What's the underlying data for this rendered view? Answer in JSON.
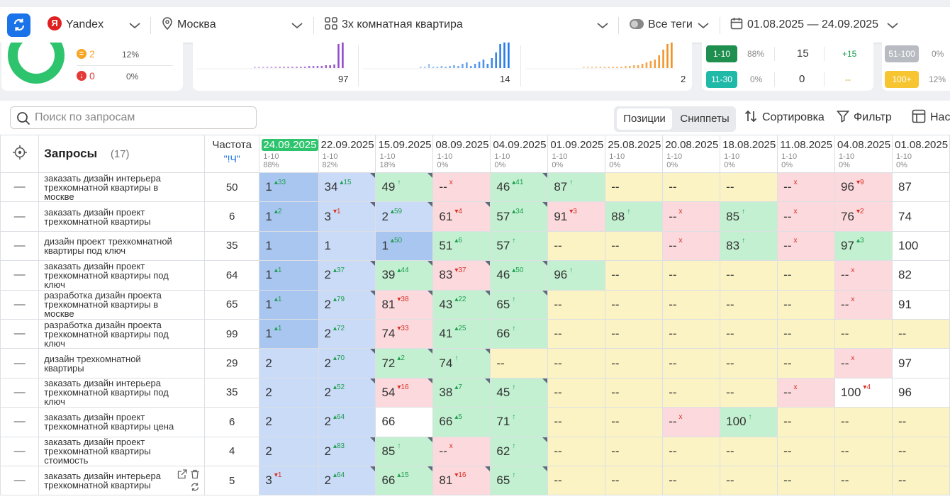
{
  "toolbar": {
    "engine": "Yandex",
    "engine_logo": "Я",
    "region": "Москва",
    "project": "3х комнатная квартира",
    "tags": "Все теги",
    "date_range": "01.08.2025 — 24.09.2025"
  },
  "summary": {
    "legend": [
      {
        "icon": "equal-icon",
        "count": "2",
        "pct": "12%",
        "color": "#f5a623"
      },
      {
        "icon": "arrow-down-icon",
        "count": "0",
        "pct": "0%",
        "color": "#e53935"
      }
    ],
    "mini_charts": [
      {
        "value": "97",
        "color": "#8e44c9"
      },
      {
        "value": "14",
        "color": "#1a73e8"
      },
      {
        "value": "2",
        "color": "#f08c1a"
      }
    ],
    "ranges": [
      {
        "label": "1-10",
        "pct": "88%",
        "count": "15",
        "delta": "+15",
        "color": "#1e8f4f"
      },
      {
        "label": "11-30",
        "pct": "0%",
        "count": "0",
        "delta": "--",
        "color": "#1fb9a8"
      },
      {
        "label": "51-100",
        "pct": "0%",
        "color": "#b8bcc2"
      },
      {
        "label": "100+",
        "pct": "12%",
        "color": "#f7c531"
      }
    ]
  },
  "search": {
    "placeholder": "Поиск по запросам"
  },
  "tabs": {
    "positions": "Позиции",
    "snippets": "Сниппеты"
  },
  "tools": {
    "sort": "Сортировка",
    "filter": "Фильтр",
    "columns": "Нас"
  },
  "table": {
    "queries_label": "Запросы",
    "queries_count": "(17)",
    "freq_label": "Частота",
    "freq_sub": "\"!Ч\"",
    "dates": [
      {
        "date": "24.09.2025",
        "range": "1-10",
        "pct": "88%"
      },
      {
        "date": "22.09.2025",
        "range": "1-10",
        "pct": "82%"
      },
      {
        "date": "15.09.2025",
        "range": "1-10",
        "pct": "18%"
      },
      {
        "date": "08.09.2025",
        "range": "1-10",
        "pct": "0%"
      },
      {
        "date": "04.09.2025",
        "range": "1-10",
        "pct": "0%"
      },
      {
        "date": "01.09.2025",
        "range": "1-10",
        "pct": "0%"
      },
      {
        "date": "25.08.2025",
        "range": "1-10",
        "pct": "0%"
      },
      {
        "date": "20.08.2025",
        "range": "1-10",
        "pct": "0%"
      },
      {
        "date": "18.08.2025",
        "range": "1-10",
        "pct": "0%"
      },
      {
        "date": "11.08.2025",
        "range": "1-10",
        "pct": "0%"
      },
      {
        "date": "04.08.2025",
        "range": "1-10",
        "pct": "0%"
      },
      {
        "date": "01.08.2025",
        "range": "1-10",
        "pct": "0%"
      }
    ],
    "rows": [
      {
        "query": "заказать дизайн интерьера трехкомнатной квартиры в москве",
        "freq": "50",
        "cells": [
          [
            "1",
            "+33"
          ],
          [
            "34",
            "+15"
          ],
          [
            "49",
            "↑"
          ],
          [
            "--",
            "×"
          ],
          [
            "46",
            "+41"
          ],
          [
            "87",
            "↑"
          ],
          [
            "--",
            ""
          ],
          [
            "--",
            ""
          ],
          [
            "--",
            ""
          ],
          [
            "--",
            "×"
          ],
          [
            "96",
            "-9"
          ],
          [
            "87",
            ""
          ]
        ]
      },
      {
        "query": "заказать дизайн проект трехкомнатной квартиры",
        "freq": "6",
        "cells": [
          [
            "1",
            "+2"
          ],
          [
            "3",
            "-1"
          ],
          [
            "2",
            "+59"
          ],
          [
            "61",
            "-4"
          ],
          [
            "57",
            "+34"
          ],
          [
            "91",
            "-3"
          ],
          [
            "88",
            "↑"
          ],
          [
            "--",
            "×"
          ],
          [
            "85",
            "↑"
          ],
          [
            "--",
            "×"
          ],
          [
            "76",
            "-2"
          ],
          [
            "74",
            ""
          ]
        ]
      },
      {
        "query": "дизайн проект трехкомнатной квартиры под ключ",
        "freq": "35",
        "cells": [
          [
            "1",
            ""
          ],
          [
            "1",
            ""
          ],
          [
            "1",
            "+50"
          ],
          [
            "51",
            "+6"
          ],
          [
            "57",
            "↑"
          ],
          [
            "--",
            ""
          ],
          [
            "--",
            ""
          ],
          [
            "--",
            "×"
          ],
          [
            "83",
            "↑"
          ],
          [
            "--",
            "×"
          ],
          [
            "97",
            "+3"
          ],
          [
            "100",
            ""
          ]
        ]
      },
      {
        "query": "заказать дизайн проект трехкомнатной квартиры под ключ",
        "freq": "64",
        "cells": [
          [
            "1",
            "+1"
          ],
          [
            "2",
            "+37"
          ],
          [
            "39",
            "+44"
          ],
          [
            "83",
            "-37"
          ],
          [
            "46",
            "+50"
          ],
          [
            "96",
            "↑"
          ],
          [
            "--",
            ""
          ],
          [
            "--",
            ""
          ],
          [
            "--",
            ""
          ],
          [
            "--",
            ""
          ],
          [
            "--",
            "×"
          ],
          [
            "82",
            ""
          ]
        ]
      },
      {
        "query": "разработка дизайн проекта трехкомнатной квартиры в москве",
        "freq": "65",
        "cells": [
          [
            "1",
            "+1"
          ],
          [
            "2",
            "+79"
          ],
          [
            "81",
            "-38"
          ],
          [
            "43",
            "+22"
          ],
          [
            "65",
            "↑"
          ],
          [
            "--",
            ""
          ],
          [
            "--",
            ""
          ],
          [
            "--",
            ""
          ],
          [
            "--",
            ""
          ],
          [
            "--",
            ""
          ],
          [
            "--",
            "×"
          ],
          [
            "91",
            ""
          ]
        ]
      },
      {
        "query": "разработка дизайн проекта трехкомнатной квартиры под ключ",
        "freq": "99",
        "cells": [
          [
            "1",
            "+1"
          ],
          [
            "2",
            "+72"
          ],
          [
            "74",
            "-33"
          ],
          [
            "41",
            "+25"
          ],
          [
            "66",
            "↑"
          ],
          [
            "--",
            ""
          ],
          [
            "--",
            ""
          ],
          [
            "--",
            ""
          ],
          [
            "--",
            ""
          ],
          [
            "--",
            ""
          ],
          [
            "--",
            ""
          ],
          [
            "--",
            ""
          ]
        ]
      },
      {
        "query": "дизайн трехкомнатной квартиры",
        "freq": "29",
        "cells": [
          [
            "2",
            ""
          ],
          [
            "2",
            "+70"
          ],
          [
            "72",
            "+2"
          ],
          [
            "74",
            "↑"
          ],
          [
            "--",
            ""
          ],
          [
            "--",
            ""
          ],
          [
            "--",
            ""
          ],
          [
            "--",
            ""
          ],
          [
            "--",
            ""
          ],
          [
            "--",
            ""
          ],
          [
            "--",
            "×"
          ],
          [
            "97",
            ""
          ]
        ]
      },
      {
        "query": "заказать дизайн интерьера трехкомнатной квартиры под ключ",
        "freq": "35",
        "cells": [
          [
            "2",
            ""
          ],
          [
            "2",
            "+52"
          ],
          [
            "54",
            "-16"
          ],
          [
            "38",
            "+7"
          ],
          [
            "45",
            "↑"
          ],
          [
            "--",
            ""
          ],
          [
            "--",
            ""
          ],
          [
            "--",
            ""
          ],
          [
            "--",
            ""
          ],
          [
            "--",
            "×"
          ],
          [
            "100",
            "-4"
          ],
          [
            "96",
            ""
          ]
        ]
      },
      {
        "query": "заказать дизайн проект трехкомнатной квартиры цена",
        "freq": "6",
        "cells": [
          [
            "2",
            ""
          ],
          [
            "2",
            "+64"
          ],
          [
            "66",
            ""
          ],
          [
            "66",
            "+5"
          ],
          [
            "71",
            "↑"
          ],
          [
            "--",
            ""
          ],
          [
            "--",
            ""
          ],
          [
            "--",
            "×"
          ],
          [
            "100",
            "↑"
          ],
          [
            "--",
            ""
          ],
          [
            "--",
            ""
          ],
          [
            "--",
            ""
          ]
        ]
      },
      {
        "query": "заказать дизайн проект трехкомнатной квартиры стоимость",
        "freq": "4",
        "cells": [
          [
            "2",
            ""
          ],
          [
            "2",
            "+83"
          ],
          [
            "85",
            "↑"
          ],
          [
            "--",
            "×"
          ],
          [
            "62",
            "↑"
          ],
          [
            "--",
            ""
          ],
          [
            "--",
            ""
          ],
          [
            "--",
            ""
          ],
          [
            "--",
            ""
          ],
          [
            "--",
            ""
          ],
          [
            "--",
            ""
          ],
          [
            "--",
            ""
          ]
        ]
      },
      {
        "query": "заказать дизайн интерьера трехкомнатной квартиры",
        "freq": "5",
        "cells": [
          [
            "3",
            "-1"
          ],
          [
            "2",
            "+64"
          ],
          [
            "66",
            "+15"
          ],
          [
            "81",
            "-16"
          ],
          [
            "65",
            "↑"
          ],
          [
            "--",
            ""
          ],
          [
            "--",
            ""
          ],
          [
            "--",
            ""
          ],
          [
            "--",
            ""
          ],
          [
            "--",
            ""
          ],
          [
            "--",
            ""
          ],
          [
            "--",
            ""
          ]
        ]
      }
    ]
  }
}
